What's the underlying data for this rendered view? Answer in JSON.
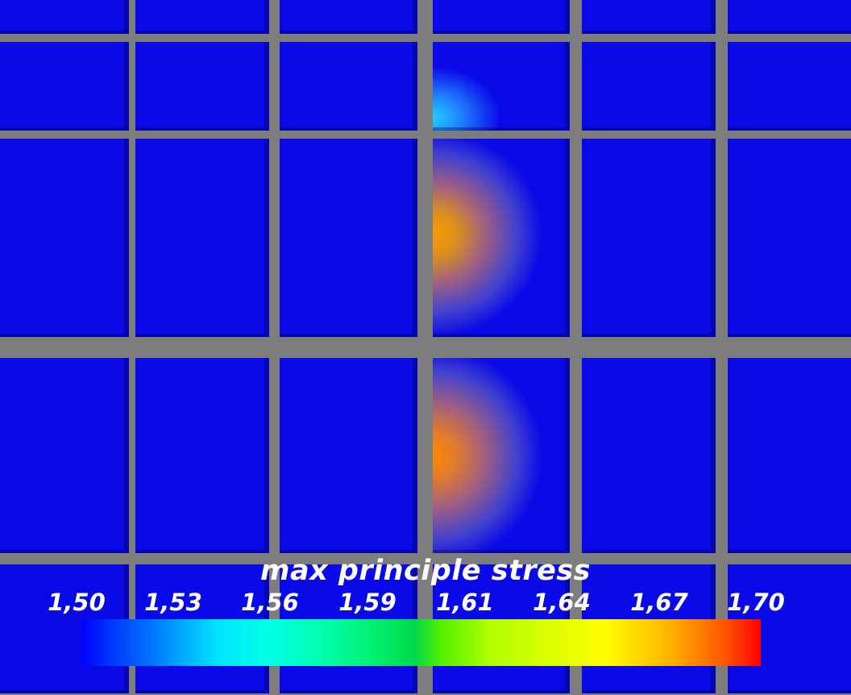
{
  "legend": {
    "title": "max principle stress",
    "ticks": [
      "1,50",
      "1,53",
      "1,56",
      "1,59",
      "1,61",
      "1,64",
      "1,67",
      "1,70"
    ],
    "range": [
      1.5,
      1.7
    ],
    "colormap": [
      "#0000ff",
      "#00ffff",
      "#00ff00",
      "#ffff00",
      "#ff0000"
    ]
  },
  "colors": {
    "background": "#7d7d7d",
    "tile_low": "#0a0ae8"
  }
}
